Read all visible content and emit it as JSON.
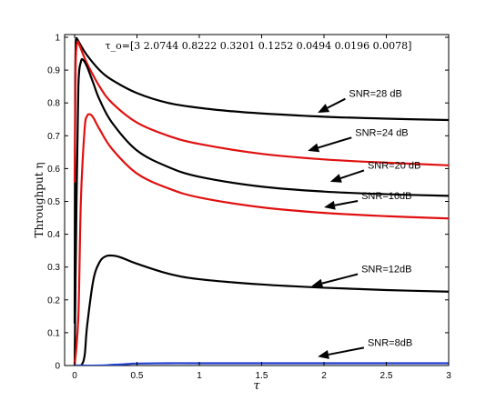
{
  "chart_data": {
    "type": "line",
    "xlabel": "τ",
    "ylabel": "Throughput η",
    "xlim": [
      0,
      3
    ],
    "ylim": [
      0,
      1
    ],
    "xticks": [
      0,
      0.5,
      1,
      1.5,
      2,
      2.5,
      3
    ],
    "xtick_labels": [
      "0",
      "0.5",
      "1",
      "1.5",
      "2",
      "2.5",
      "3"
    ],
    "yticks": [
      0,
      0.1,
      0.2,
      0.3,
      0.4,
      0.5,
      0.6,
      0.7,
      0.8,
      0.9,
      1
    ],
    "ytick_labels": [
      "0",
      "0.1",
      "0.2",
      "0.3",
      "0.4",
      "0.5",
      "0.6",
      "0.7",
      "0.8",
      "0.9",
      "1"
    ],
    "grid": false,
    "annotation_top": "τ_o=[3 2.0744 0.8222 0.3201 0.1252 0.0494 0.0196 0.0078]",
    "series": [
      {
        "name": "SNR=28 dB",
        "color": "#000000",
        "x": [
          0,
          0.004,
          0.008,
          0.012,
          0.02,
          0.05,
          0.1,
          0.2,
          0.3,
          0.5,
          0.75,
          1,
          1.25,
          1.5,
          2,
          2.5,
          3
        ],
        "y": [
          0.13,
          0.8,
          0.97,
          0.995,
          0.995,
          0.975,
          0.945,
          0.9,
          0.87,
          0.83,
          0.8,
          0.785,
          0.775,
          0.768,
          0.758,
          0.752,
          0.748
        ]
      },
      {
        "name": "SNR=24 dB",
        "color": "#e01010",
        "x": [
          0,
          0.008,
          0.015,
          0.025,
          0.03,
          0.05,
          0.1,
          0.2,
          0.3,
          0.5,
          0.75,
          1,
          1.5,
          2,
          2.5,
          3
        ],
        "y": [
          0.56,
          0.9,
          0.97,
          0.985,
          0.985,
          0.965,
          0.92,
          0.85,
          0.8,
          0.74,
          0.7,
          0.675,
          0.645,
          0.628,
          0.618,
          0.61
        ]
      },
      {
        "name": "SNR=20 dB",
        "color": "#000000",
        "x": [
          0,
          0.015,
          0.03,
          0.05,
          0.07,
          0.1,
          0.15,
          0.2,
          0.3,
          0.5,
          0.75,
          1,
          1.5,
          2,
          2.5,
          3
        ],
        "y": [
          0.0,
          0.5,
          0.85,
          0.925,
          0.93,
          0.91,
          0.86,
          0.81,
          0.74,
          0.655,
          0.605,
          0.575,
          0.545,
          0.53,
          0.522,
          0.517
        ]
      },
      {
        "name": "SNR=16dB",
        "color": "#e01010",
        "x": [
          0,
          0.03,
          0.05,
          0.08,
          0.1,
          0.125,
          0.15,
          0.2,
          0.3,
          0.5,
          0.75,
          1,
          1.5,
          2,
          2.5,
          3
        ],
        "y": [
          0.0,
          0.15,
          0.5,
          0.72,
          0.76,
          0.765,
          0.755,
          0.72,
          0.66,
          0.585,
          0.54,
          0.512,
          0.482,
          0.465,
          0.455,
          0.448
        ]
      },
      {
        "name": "SNR=12dB",
        "color": "#000000",
        "x": [
          0,
          0.05,
          0.08,
          0.1,
          0.15,
          0.2,
          0.25,
          0.3,
          0.35,
          0.4,
          0.5,
          0.75,
          1,
          1.5,
          2,
          2.5,
          3
        ],
        "y": [
          0.0,
          0.0,
          0.03,
          0.12,
          0.26,
          0.315,
          0.333,
          0.335,
          0.332,
          0.325,
          0.31,
          0.28,
          0.263,
          0.247,
          0.237,
          0.23,
          0.225
        ]
      },
      {
        "name": "SNR=8dB",
        "color": "#1f3fd0",
        "x": [
          0,
          0.2,
          0.3,
          0.4,
          0.5,
          0.75,
          1,
          1.5,
          2,
          2.5,
          3
        ],
        "y": [
          0.0,
          0.0,
          0.002,
          0.004,
          0.006,
          0.007,
          0.007,
          0.007,
          0.007,
          0.007,
          0.007
        ]
      }
    ],
    "labels": [
      {
        "text": "SNR=28 dB",
        "series": "SNR=28 dB",
        "arrow_to": [
          1.95,
          0.77
        ],
        "text_at": [
          2.2,
          0.818
        ]
      },
      {
        "text": "SNR=24 dB",
        "series": "SNR=24 dB",
        "arrow_to": [
          1.87,
          0.654
        ],
        "text_at": [
          2.25,
          0.7
        ]
      },
      {
        "text": "SNR=20 dB",
        "series": "SNR=20 dB",
        "arrow_to": [
          2.05,
          0.56
        ],
        "text_at": [
          2.35,
          0.6
        ]
      },
      {
        "text": "SNR=16dB",
        "series": "SNR=16dB",
        "arrow_to": [
          2.0,
          0.482
        ],
        "text_at": [
          2.3,
          0.507
        ]
      },
      {
        "text": "SNR=12dB",
        "series": "SNR=12dB",
        "arrow_to": [
          1.9,
          0.242
        ],
        "text_at": [
          2.3,
          0.284
        ]
      },
      {
        "text": "SNR=8dB",
        "series": "SNR=8dB",
        "arrow_to": [
          1.95,
          0.027
        ],
        "text_at": [
          2.35,
          0.06
        ]
      }
    ]
  }
}
